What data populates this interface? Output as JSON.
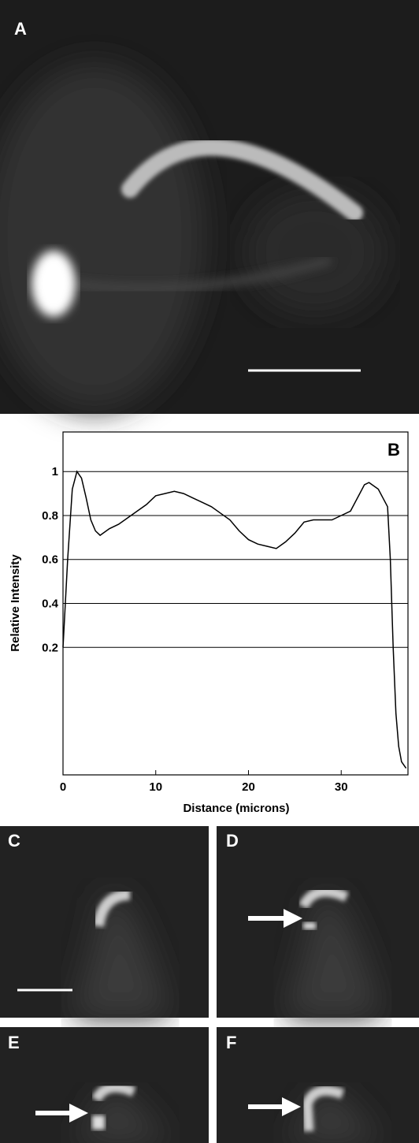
{
  "panels": {
    "a": "A",
    "c": "C",
    "d": "D",
    "e": "E",
    "f": "F"
  },
  "chart_data": {
    "type": "line",
    "annotation": "B",
    "x_label": "Distance (microns)",
    "y_label": "Relative Intensity",
    "xlim": [
      0,
      37.2
    ],
    "ylim": [
      -0.38,
      1.18
    ],
    "xticks": [
      0,
      10,
      20,
      30
    ],
    "yticks": [
      0.2,
      0.4,
      0.6,
      0.8,
      1.0
    ],
    "grid": true,
    "color": "#000000",
    "x": [
      0,
      0.5,
      1,
      1.5,
      2,
      2.5,
      3,
      3.5,
      4,
      5,
      6,
      7,
      8,
      9,
      10,
      11,
      12,
      13,
      14,
      15,
      16,
      17,
      18,
      19,
      20,
      21,
      22,
      23,
      24,
      25,
      26,
      27,
      28,
      29,
      30,
      31,
      32,
      32.5,
      33,
      34,
      34.5,
      35,
      35.3,
      35.6,
      35.9,
      36.2,
      36.5,
      37
    ],
    "values": [
      0.2,
      0.6,
      0.92,
      1.0,
      0.97,
      0.88,
      0.78,
      0.73,
      0.71,
      0.74,
      0.76,
      0.79,
      0.82,
      0.85,
      0.89,
      0.9,
      0.91,
      0.9,
      0.88,
      0.86,
      0.84,
      0.81,
      0.78,
      0.73,
      0.69,
      0.67,
      0.66,
      0.65,
      0.68,
      0.72,
      0.77,
      0.78,
      0.78,
      0.78,
      0.8,
      0.82,
      0.9,
      0.94,
      0.95,
      0.92,
      0.88,
      0.84,
      0.6,
      0.2,
      -0.1,
      -0.25,
      -0.32,
      -0.35
    ]
  }
}
